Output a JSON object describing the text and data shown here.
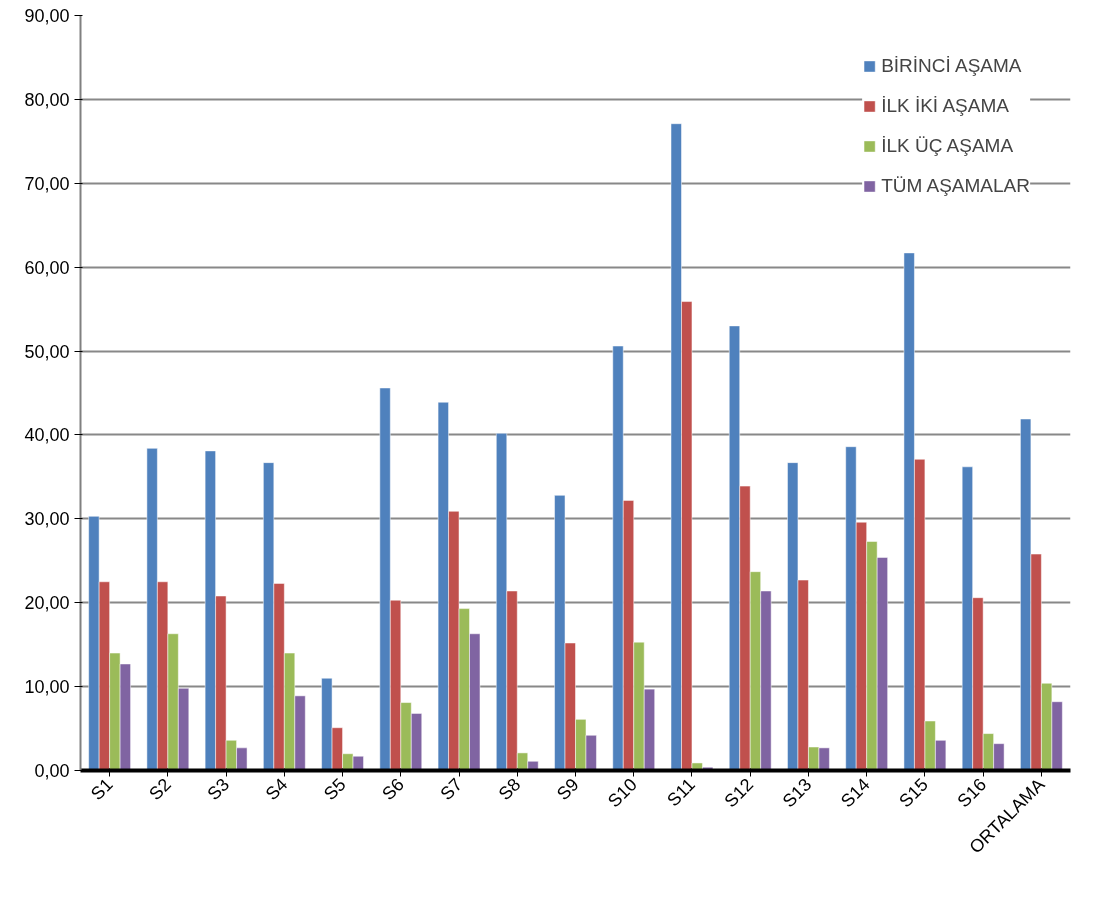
{
  "chart_data": {
    "type": "bar",
    "categories": [
      "S1",
      "S2",
      "S3",
      "S4",
      "S5",
      "S6",
      "S7",
      "S8",
      "S9",
      "S10",
      "S11",
      "S12",
      "S13",
      "S14",
      "S15",
      "S16",
      "ORTALAMA"
    ],
    "series": [
      {
        "name": "BİRİNCİ AŞAMA",
        "color": "#4f81bd",
        "values": [
          30.3,
          38.4,
          38.1,
          36.7,
          11.0,
          45.6,
          43.9,
          40.2,
          32.8,
          50.6,
          77.1,
          53.0,
          36.7,
          38.6,
          61.7,
          36.2,
          41.9
        ]
      },
      {
        "name": "İLK İKİ AŞAMA",
        "color": "#c0504d",
        "values": [
          22.5,
          22.5,
          20.8,
          22.3,
          5.1,
          20.3,
          30.9,
          21.4,
          15.2,
          32.2,
          55.9,
          33.9,
          22.7,
          29.6,
          37.1,
          20.6,
          25.8
        ]
      },
      {
        "name": "İLK ÜÇ AŞAMA",
        "color": "#9bbb59",
        "values": [
          14.0,
          16.3,
          3.6,
          14.0,
          2.0,
          8.1,
          19.3,
          2.1,
          6.1,
          15.3,
          0.9,
          23.7,
          2.8,
          27.3,
          5.9,
          4.4,
          10.4
        ]
      },
      {
        "name": "TÜM AŞAMALAR",
        "color": "#8064a2",
        "values": [
          12.7,
          9.8,
          2.7,
          8.9,
          1.7,
          6.8,
          16.3,
          1.1,
          4.2,
          9.7,
          0.4,
          21.4,
          2.7,
          25.4,
          3.6,
          3.2,
          8.2
        ]
      }
    ],
    "ylim": [
      0,
      90
    ],
    "yticks": [
      {
        "value": 0,
        "label": "0,00"
      },
      {
        "value": 10,
        "label": "10,00"
      },
      {
        "value": 20,
        "label": "20,00"
      },
      {
        "value": 30,
        "label": "30,00"
      },
      {
        "value": 40,
        "label": "40,00"
      },
      {
        "value": 50,
        "label": "50,00"
      },
      {
        "value": 60,
        "label": "60,00"
      },
      {
        "value": 70,
        "label": "70,00"
      },
      {
        "value": 80,
        "label": "80,00"
      },
      {
        "value": 90,
        "label": "90,00"
      }
    ],
    "grid": "y",
    "legend": "top right"
  }
}
